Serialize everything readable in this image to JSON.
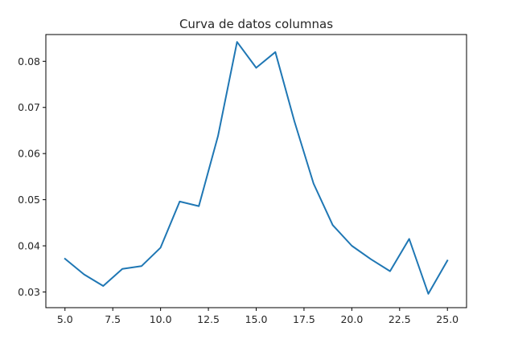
{
  "chart_data": {
    "type": "line",
    "title": "Curva de datos columnas",
    "xlabel": "",
    "ylabel": "",
    "xlim": [
      4.0,
      26.0
    ],
    "ylim": [
      0.0266,
      0.0858
    ],
    "grid": false,
    "x_ticks": [
      5.0,
      7.5,
      10.0,
      12.5,
      15.0,
      17.5,
      20.0,
      22.5,
      25.0
    ],
    "x_tick_labels": [
      "5.0",
      "7.5",
      "10.0",
      "12.5",
      "15.0",
      "17.5",
      "20.0",
      "22.5",
      "25.0"
    ],
    "y_ticks": [
      0.03,
      0.04,
      0.05,
      0.06,
      0.07,
      0.08
    ],
    "y_tick_labels": [
      "0.03",
      "0.04",
      "0.05",
      "0.06",
      "0.07",
      "0.08"
    ],
    "series": [
      {
        "color": "#1f77b4",
        "x": [
          5,
          6,
          7,
          8,
          9,
          10,
          11,
          12,
          13,
          14,
          15,
          16,
          17,
          18,
          19,
          20,
          21,
          22,
          23,
          24,
          25
        ],
        "y": [
          0.0372,
          0.0338,
          0.0313,
          0.035,
          0.0356,
          0.0396,
          0.0496,
          0.0486,
          0.0638,
          0.0842,
          0.0786,
          0.082,
          0.067,
          0.0535,
          0.0445,
          0.04,
          0.0371,
          0.0345,
          0.0415,
          0.0296,
          0.0368
        ]
      }
    ]
  }
}
